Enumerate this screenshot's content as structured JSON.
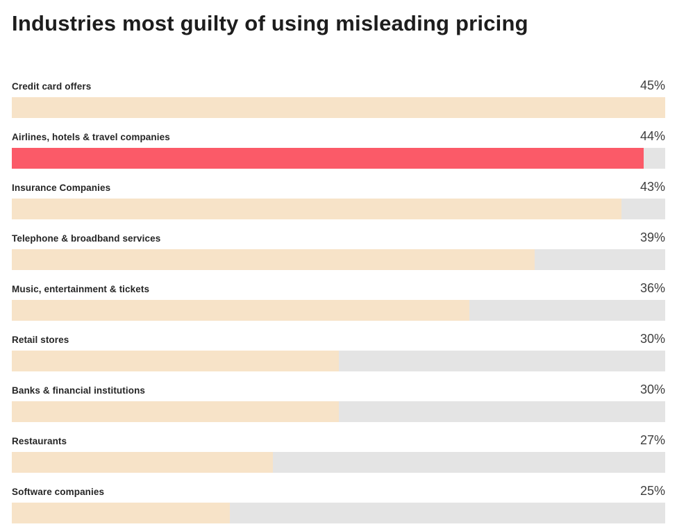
{
  "page": {
    "title": "Industries most guilty of using misleading pricing"
  },
  "chart_data": {
    "type": "bar",
    "orientation": "horizontal",
    "title": "Industries most guilty of using misleading pricing",
    "xlabel": "",
    "ylabel": "",
    "xlim": [
      15,
      45
    ],
    "grid": false,
    "legend": false,
    "value_labels_position": "top-right",
    "colors": {
      "bar": "#f7e3c8",
      "highlight": "#fb5a68",
      "track": "#e4e4e4",
      "title_text": "#1d1d1d",
      "label_text": "#252525",
      "value_text": "#3e3e3e",
      "background": "#ffffff"
    },
    "rows": [
      {
        "label": "Credit card offers",
        "value": 45,
        "display": "45%",
        "highlight": false
      },
      {
        "label": "Airlines, hotels & travel companies",
        "value": 44,
        "display": "44%",
        "highlight": true
      },
      {
        "label": "Insurance Companies",
        "value": 43,
        "display": "43%",
        "highlight": false
      },
      {
        "label": "Telephone & broadband services",
        "value": 39,
        "display": "39%",
        "highlight": false
      },
      {
        "label": "Music, entertainment & tickets",
        "value": 36,
        "display": "36%",
        "highlight": false
      },
      {
        "label": "Retail stores",
        "value": 30,
        "display": "30%",
        "highlight": false
      },
      {
        "label": "Banks & financial institutions",
        "value": 30,
        "display": "30%",
        "highlight": false
      },
      {
        "label": "Restaurants",
        "value": 27,
        "display": "27%",
        "highlight": false
      },
      {
        "label": "Software companies",
        "value": 25,
        "display": "25%",
        "highlight": false
      }
    ]
  }
}
